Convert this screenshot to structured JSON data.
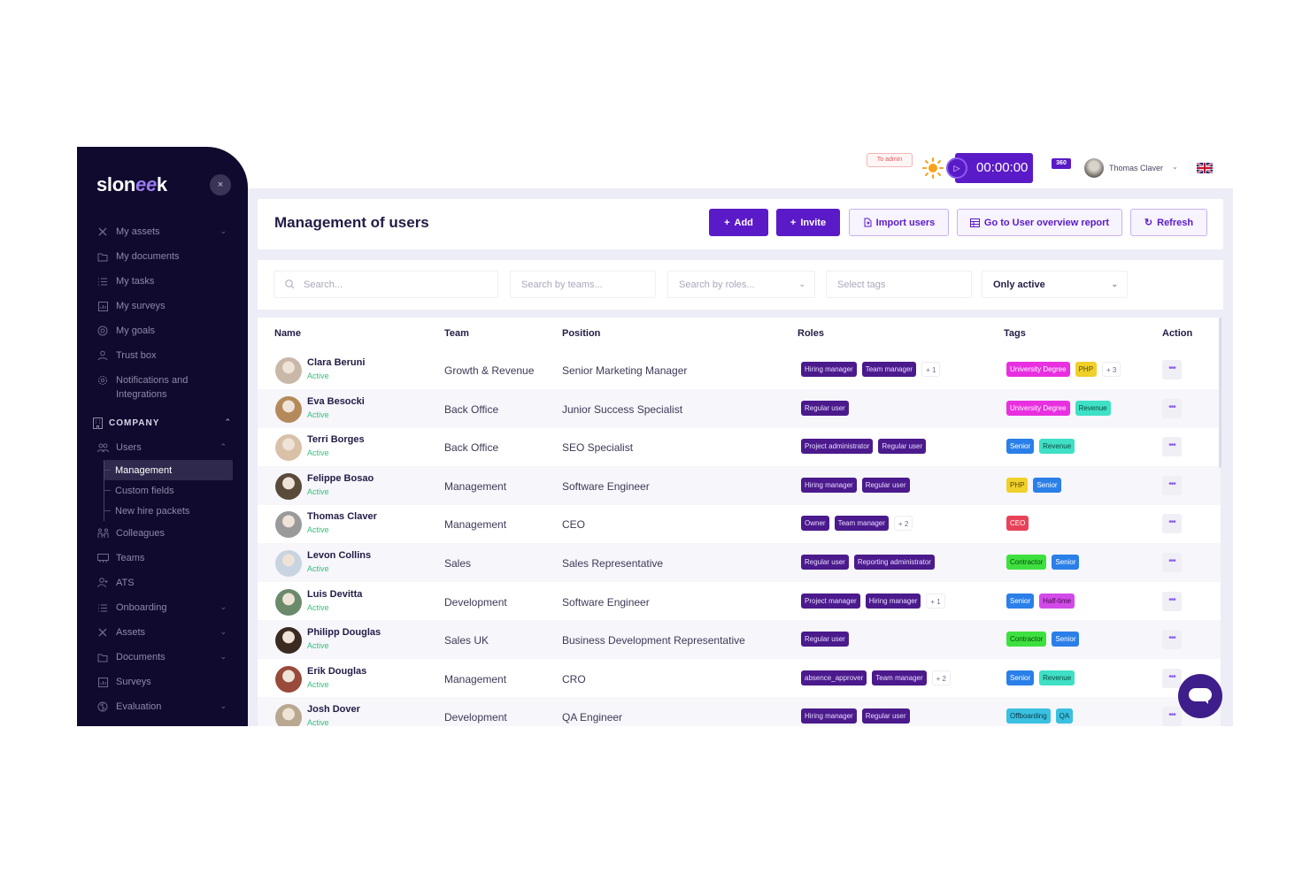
{
  "brand": {
    "logo_prefix": "slon",
    "logo_mid": "ee",
    "logo_suffix": "k",
    "close_label": "×"
  },
  "colors": {
    "sidebar_bg": "#0f0a2e",
    "primary": "#5b1ac7",
    "role_pill": "#4b1a8c",
    "active_status": "#35c07a",
    "main_bg": "#ecedf6"
  },
  "sidebar": {
    "personal_items": [
      {
        "label": "My assets",
        "icon": "tools-icon",
        "has_chevron": true
      },
      {
        "label": "My documents",
        "icon": "folder-icon"
      },
      {
        "label": "My tasks",
        "icon": "checklist-icon"
      },
      {
        "label": "My surveys",
        "icon": "chart-icon"
      },
      {
        "label": "My goals",
        "icon": "target-icon"
      },
      {
        "label": "Trust box",
        "icon": "hand-heart-icon"
      },
      {
        "label_line1": "Notifications and",
        "label_line2": "Integrations",
        "icon": "gear-icon"
      }
    ],
    "company_section": {
      "label": "COMPANY",
      "icon": "building-icon"
    },
    "users": {
      "label": "Users",
      "icon": "users-icon"
    },
    "users_sub": [
      {
        "label": "Management",
        "active": true
      },
      {
        "label": "Custom fields"
      },
      {
        "label": "New hire packets"
      }
    ],
    "company_items": [
      {
        "label": "Colleagues",
        "icon": "colleagues-icon"
      },
      {
        "label": "Teams",
        "icon": "teams-icon"
      },
      {
        "label": "ATS",
        "icon": "user-plus-icon"
      },
      {
        "label": "Onboarding",
        "icon": "checklist-icon",
        "has_chevron": true
      },
      {
        "label": "Assets",
        "icon": "tools-icon",
        "has_chevron": true
      },
      {
        "label": "Documents",
        "icon": "folder-icon",
        "has_chevron": true
      },
      {
        "label": "Surveys",
        "icon": "chart-icon"
      },
      {
        "label": "Evaluation",
        "icon": "brain-icon",
        "has_chevron": true
      }
    ]
  },
  "topbar": {
    "to_admin": "To admin",
    "timer": "00:00:00",
    "notifications_count": "360",
    "user_name": "Thomas Claver",
    "language": "EN-GB"
  },
  "page": {
    "title": "Management of users",
    "buttons": {
      "add": "Add",
      "invite": "Invite",
      "import": "Import users",
      "report": "Go to User overview report",
      "refresh": "Refresh"
    },
    "filters": {
      "search_placeholder": "Search...",
      "teams_placeholder": "Search by teams...",
      "roles_placeholder": "Search by roles...",
      "tags_placeholder": "Select tags",
      "status_value": "Only active"
    }
  },
  "table": {
    "columns": {
      "name": "Name",
      "team": "Team",
      "position": "Position",
      "roles": "Roles",
      "tags": "Tags",
      "action": "Action"
    },
    "rows": [
      {
        "name": "Clara Beruni",
        "status": "Active",
        "team": "Growth & Revenue",
        "position": "Senior Marketing Manager",
        "roles": [
          "Hiring manager",
          "Team manager"
        ],
        "roles_more": "+ 1",
        "tags": [
          {
            "label": "University Degree",
            "bg": "#e830e0",
            "fg": "#ffffff"
          },
          {
            "label": "PHP",
            "bg": "#f0d02a",
            "fg": "#5a4a00"
          }
        ],
        "tags_more": "+ 3"
      },
      {
        "name": "Eva Besocki",
        "status": "Active",
        "team": "Back Office",
        "position": "Junior Success Specialist",
        "roles": [
          "Regular user"
        ],
        "roles_more": "",
        "tags": [
          {
            "label": "University Degree",
            "bg": "#e830e0",
            "fg": "#ffffff"
          },
          {
            "label": "Revenue",
            "bg": "#3fe0c5",
            "fg": "#0a4a40"
          }
        ],
        "tags_more": ""
      },
      {
        "name": "Terri Borges",
        "status": "Active",
        "team": "Back Office",
        "position": "SEO Specialist",
        "roles": [
          "Project administrator",
          "Regular user"
        ],
        "roles_more": "",
        "tags": [
          {
            "label": "Senior",
            "bg": "#2a7fe8",
            "fg": "#ffffff"
          },
          {
            "label": "Revenue",
            "bg": "#3fe0c5",
            "fg": "#0a4a40"
          }
        ],
        "tags_more": ""
      },
      {
        "name": "Felippe Bosao",
        "status": "Active",
        "team": "Management",
        "position": "Software Engineer",
        "roles": [
          "Hiring manager",
          "Regular user"
        ],
        "roles_more": "",
        "tags": [
          {
            "label": "PHP",
            "bg": "#f0d02a",
            "fg": "#5a4a00"
          },
          {
            "label": "Senior",
            "bg": "#2a7fe8",
            "fg": "#ffffff"
          }
        ],
        "tags_more": ""
      },
      {
        "name": "Thomas Claver",
        "status": "Active",
        "team": "Management",
        "position": "CEO",
        "roles": [
          "Owner",
          "Team manager"
        ],
        "roles_more": "+ 2",
        "tags": [
          {
            "label": "CEO",
            "bg": "#e84258",
            "fg": "#ffffff"
          }
        ],
        "tags_more": ""
      },
      {
        "name": "Levon Collins",
        "status": "Active",
        "team": "Sales",
        "position": "Sales Representative",
        "roles": [
          "Regular user",
          "Reporting administrator"
        ],
        "roles_more": "",
        "tags": [
          {
            "label": "Contractor",
            "bg": "#3ee040",
            "fg": "#0a4a10"
          },
          {
            "label": "Senior",
            "bg": "#2a7fe8",
            "fg": "#ffffff"
          }
        ],
        "tags_more": ""
      },
      {
        "name": "Luis Devitta",
        "status": "Active",
        "team": "Development",
        "position": "Software Engineer",
        "roles": [
          "Project manager",
          "Hiring manager"
        ],
        "roles_more": "+ 1",
        "tags": [
          {
            "label": "Senior",
            "bg": "#2a7fe8",
            "fg": "#ffffff"
          },
          {
            "label": "Half-time",
            "bg": "#d24ae8",
            "fg": "#4a0a50"
          }
        ],
        "tags_more": ""
      },
      {
        "name": "Philipp Douglas",
        "status": "Active",
        "team": "Sales UK",
        "position": "Business Development Representative",
        "roles": [
          "Regular user"
        ],
        "roles_more": "",
        "tags": [
          {
            "label": "Contractor",
            "bg": "#3ee040",
            "fg": "#0a4a10"
          },
          {
            "label": "Senior",
            "bg": "#2a7fe8",
            "fg": "#ffffff"
          }
        ],
        "tags_more": ""
      },
      {
        "name": "Erik Douglas",
        "status": "Active",
        "team": "Management",
        "position": "CRO",
        "roles": [
          "absence_approver",
          "Team manager"
        ],
        "roles_more": "+ 2",
        "tags": [
          {
            "label": "Senior",
            "bg": "#2a7fe8",
            "fg": "#ffffff"
          },
          {
            "label": "Revenue",
            "bg": "#3fe0c5",
            "fg": "#0a4a40"
          }
        ],
        "tags_more": ""
      },
      {
        "name": "Josh Dover",
        "status": "Active",
        "team": "Development",
        "position": "QA Engineer",
        "roles": [
          "Hiring manager",
          "Regular user"
        ],
        "roles_more": "",
        "tags": [
          {
            "label": "Offboarding",
            "bg": "#3ac0e0",
            "fg": "#0a3a4a"
          },
          {
            "label": "QA",
            "bg": "#3ac0e0",
            "fg": "#0a3a4a"
          }
        ],
        "tags_more": ""
      }
    ],
    "action_label": "•••"
  }
}
